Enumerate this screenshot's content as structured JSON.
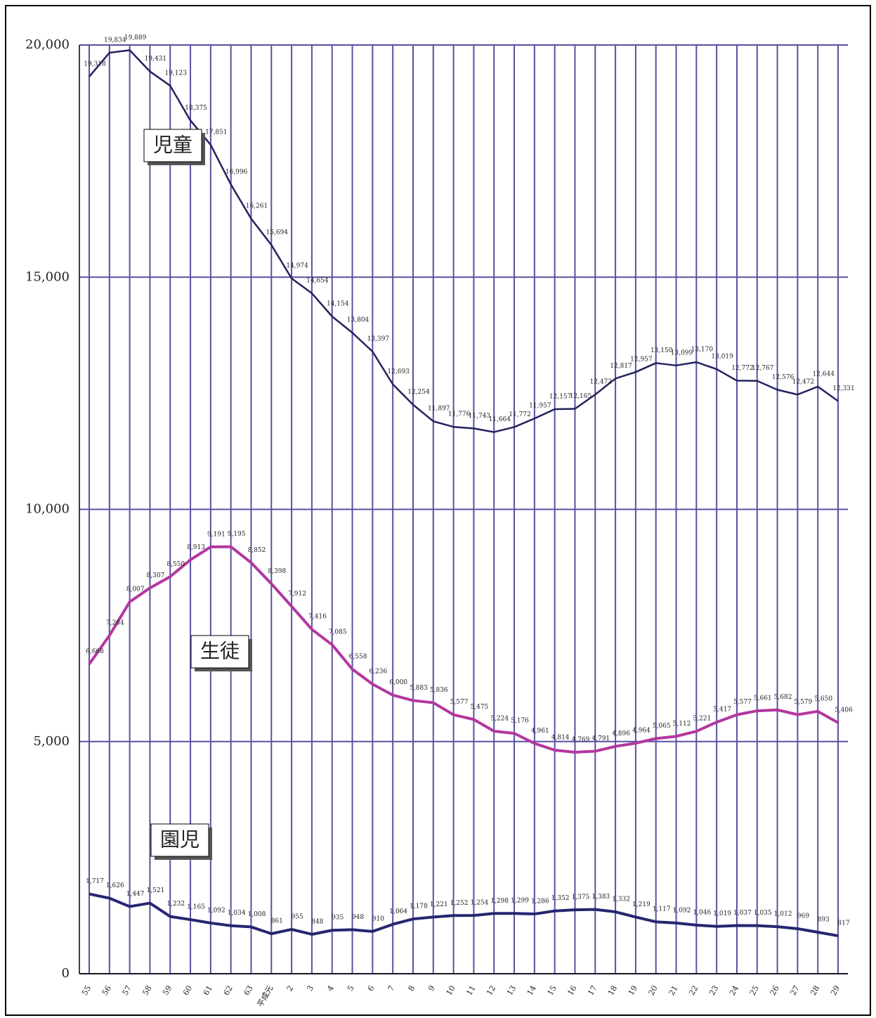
{
  "chart_data": {
    "type": "line",
    "categories": [
      "55",
      "56",
      "57",
      "58",
      "59",
      "60",
      "61",
      "62",
      "63",
      "平成元",
      "2",
      "3",
      "4",
      "5",
      "6",
      "7",
      "8",
      "9",
      "10",
      "11",
      "12",
      "13",
      "14",
      "15",
      "16",
      "17",
      "18",
      "19",
      "20",
      "21",
      "22",
      "23",
      "24",
      "25",
      "26",
      "27",
      "28",
      "29"
    ],
    "series": [
      {
        "name": "児童",
        "color": "#23235f",
        "width": 2.5,
        "values": [
          19318,
          19834,
          19889,
          19431,
          19123,
          18375,
          17851,
          16996,
          16261,
          15694,
          14974,
          14654,
          14154,
          13804,
          13397,
          12693,
          12254,
          11897,
          11776,
          11743,
          11664,
          11772,
          11957,
          12157,
          12165,
          12472,
          12817,
          12957,
          13150,
          13099,
          13170,
          13019,
          12772,
          12767,
          12576,
          12472,
          12644,
          12331
        ],
        "value_labels": [
          "19,318",
          "19,834",
          "19,889",
          "19,431",
          "19,123",
          "18,375",
          "17,851",
          "16,996",
          "16,261",
          "15,694",
          "14,974",
          "14,654",
          "14,154",
          "13,804",
          "13,397",
          "12,693",
          "12,254",
          "11,897",
          "11,776",
          "11,743",
          "11,664",
          "11,772",
          "11,957",
          "12,157",
          "12,165",
          "12,472",
          "12,817",
          "12,957",
          "13,150",
          "13,099",
          "13,170",
          "13,019",
          "12,772",
          "12,767",
          "12,576",
          "12,472",
          "12,644",
          "12,331"
        ]
      },
      {
        "name": "生徒",
        "color": "#b3379f",
        "width": 4,
        "values": [
          6668,
          7284,
          8007,
          8307,
          8550,
          8913,
          9191,
          9195,
          8852,
          8398,
          7912,
          7416,
          7085,
          6558,
          6236,
          6000,
          5883,
          5836,
          5577,
          5475,
          5224,
          5176,
          4961,
          4814,
          4769,
          4791,
          4896,
          4964,
          5065,
          5112,
          5221,
          5417,
          5577,
          5661,
          5682,
          5579,
          5650,
          5406
        ],
        "value_labels": [
          "6,668",
          "7,284",
          "8,007",
          "8,307",
          "8,550",
          "8,913",
          "9,191",
          "9,195",
          "8,852",
          "8,398",
          "7,912",
          "7,416",
          "7,085",
          "6,558",
          "6,236",
          "6,000",
          "5,883",
          "5,836",
          "5,577",
          "5,475",
          "5,224",
          "5,176",
          "4,961",
          "4,814",
          "4,769",
          "4,791",
          "4,896",
          "4,964",
          "5,065",
          "5,112",
          "5,221",
          "5,417",
          "5,577",
          "5,661",
          "5,682",
          "5,579",
          "5,650",
          "5,406"
        ]
      },
      {
        "name": "園児",
        "color": "#262670",
        "width": 4,
        "values": [
          1717,
          1626,
          1447,
          1521,
          1232,
          1165,
          1092,
          1034,
          1008,
          861,
          955,
          848,
          935,
          948,
          910,
          1064,
          1178,
          1221,
          1252,
          1254,
          1298,
          1299,
          1286,
          1352,
          1375,
          1383,
          1332,
          1219,
          1117,
          1092,
          1046,
          1019,
          1037,
          1035,
          1012,
          969,
          893,
          817
        ],
        "value_labels": [
          "1,717",
          "1,626",
          "1,447",
          "1,521",
          "1,232",
          "1,165",
          "1,092",
          "1,034",
          "1,008",
          "861",
          "955",
          "848",
          "935",
          "948",
          "910",
          "1,064",
          "1,178",
          "1,221",
          "1,252",
          "1,254",
          "1,298",
          "1,299",
          "1,286",
          "1,352",
          "1,375",
          "1,383",
          "1,332",
          "1,219",
          "1,117",
          "1,092",
          "1,046",
          "1,019",
          "1,037",
          "1,035",
          "1,012",
          "969",
          "893",
          "817"
        ]
      }
    ],
    "ylim": [
      0,
      20000
    ],
    "yticks": [
      0,
      {
        "value": 5000,
        "label": "5,000"
      },
      {
        "value": 10000,
        "label": "10,000"
      },
      {
        "value": 15000,
        "label": "15,000"
      },
      {
        "value": 20000,
        "label": "20,000"
      }
    ],
    "grid": true,
    "grid_color": "#5a50a0"
  }
}
